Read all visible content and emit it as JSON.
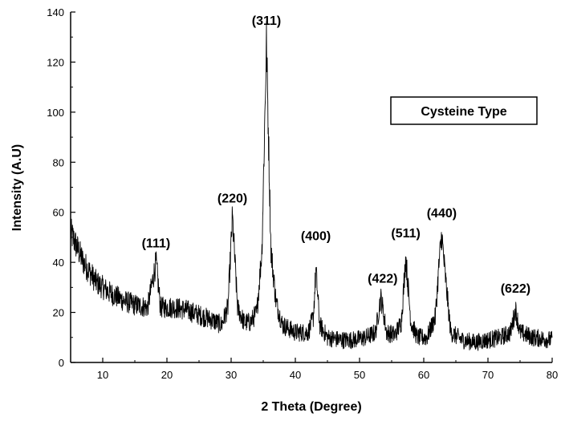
{
  "chart_data": {
    "type": "line",
    "title": "",
    "xlabel": "2 Theta (Degree)",
    "ylabel": "Intensity (A.U)",
    "xlim": [
      5,
      80
    ],
    "ylim": [
      0,
      140
    ],
    "x_ticks": [
      10,
      20,
      30,
      40,
      50,
      60,
      70,
      80
    ],
    "y_ticks": [
      0,
      20,
      40,
      60,
      80,
      100,
      120,
      140
    ],
    "grid": false,
    "legend": {
      "text": "Cysteine Type",
      "placement": "top-right"
    },
    "series": [
      {
        "color": "#000000",
        "x": [
          5,
          7,
          9,
          11,
          13,
          15,
          17,
          18.3,
          19,
          21,
          23,
          25,
          27,
          28.5,
          29.5,
          30.2,
          31,
          32,
          33,
          34,
          34.8,
          35.5,
          36.2,
          37,
          38,
          40,
          42,
          42.8,
          43.2,
          43.8,
          45,
          47,
          49,
          51,
          52.5,
          53.3,
          53.6,
          54.2,
          55.5,
          56.5,
          57.2,
          58,
          59,
          60.5,
          61.8,
          62.4,
          62.8,
          63.3,
          64.2,
          66,
          68,
          70,
          72,
          73.5,
          74.3,
          75,
          77,
          80
        ],
        "y": [
          52,
          40,
          32,
          28,
          25,
          23,
          22,
          40,
          22,
          22,
          21,
          19,
          17,
          15,
          22,
          58,
          22,
          16,
          16,
          20,
          45,
          128,
          45,
          24,
          15,
          12,
          12,
          18,
          37,
          15,
          10,
          9,
          9,
          10,
          12,
          26,
          22,
          12,
          11,
          16,
          42,
          16,
          10,
          10,
          18,
          40,
          51,
          36,
          12,
          9,
          8,
          9,
          10,
          12,
          21,
          12,
          10,
          9
        ]
      }
    ],
    "annotations": [
      {
        "text": "(111)",
        "x": 18.3,
        "y": 44
      },
      {
        "text": "(220)",
        "x": 30.2,
        "y": 62
      },
      {
        "text": "(311)",
        "x": 35.5,
        "y": 133
      },
      {
        "text": "(400)",
        "x": 43.2,
        "y": 47
      },
      {
        "text": "(422)",
        "x": 53.6,
        "y": 30
      },
      {
        "text": "(511)",
        "x": 57.2,
        "y": 48
      },
      {
        "text": "(440)",
        "x": 62.8,
        "y": 56
      },
      {
        "text": "(622)",
        "x": 74.3,
        "y": 26
      }
    ]
  }
}
